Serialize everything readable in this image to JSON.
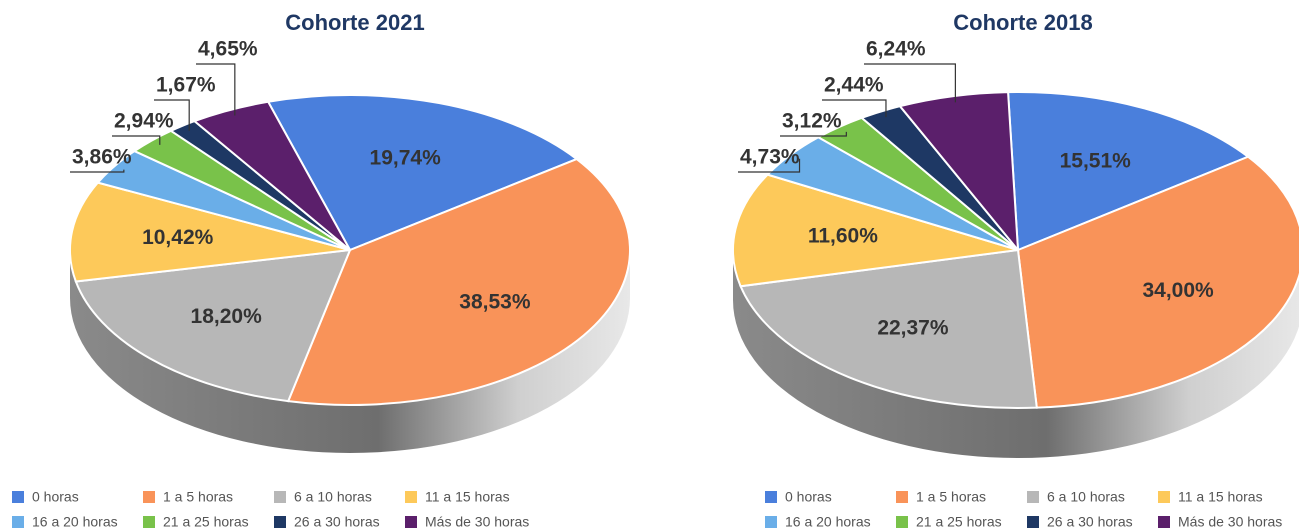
{
  "chart_data": [
    {
      "type": "pie",
      "title": "Cohorte 2021",
      "categories": [
        "0 horas",
        "1 a 5 horas",
        "6 a 10 horas",
        "11 a 15 horas",
        "16 a 20 horas",
        "21 a 25 horas",
        "26 a 30 horas",
        "Más de 30 horas"
      ],
      "values": [
        19.74,
        38.53,
        18.2,
        10.42,
        3.86,
        2.94,
        1.67,
        4.65
      ],
      "value_labels": [
        "19,74%",
        "38,53%",
        "18,20%",
        "10,42%",
        "3,86%",
        "2,94%",
        "1,67%",
        "4,65%"
      ],
      "colors": [
        "#4a7fdc",
        "#f99359",
        "#b7b7b7",
        "#fdc95a",
        "#6aaee8",
        "#79c24a",
        "#1e3864",
        "#5b1f6b"
      ]
    },
    {
      "type": "pie",
      "title": "Cohorte 2018",
      "categories": [
        "0 horas",
        "1 a 5 horas",
        "6 a 10 horas",
        "11 a 15 horas",
        "16 a 20 horas",
        "21 a 25 horas",
        "26 a 30 horas",
        "Más de 30 horas"
      ],
      "values": [
        15.51,
        34.0,
        22.37,
        11.6,
        4.73,
        3.12,
        2.44,
        6.24
      ],
      "value_labels": [
        "15,51%",
        "34,00%",
        "22,37%",
        "11,60%",
        "4,73%",
        "3,12%",
        "2,44%",
        "6,24%"
      ],
      "colors": [
        "#4a7fdc",
        "#f99359",
        "#b7b7b7",
        "#fdc95a",
        "#6aaee8",
        "#79c24a",
        "#1e3864",
        "#5b1f6b"
      ]
    }
  ]
}
